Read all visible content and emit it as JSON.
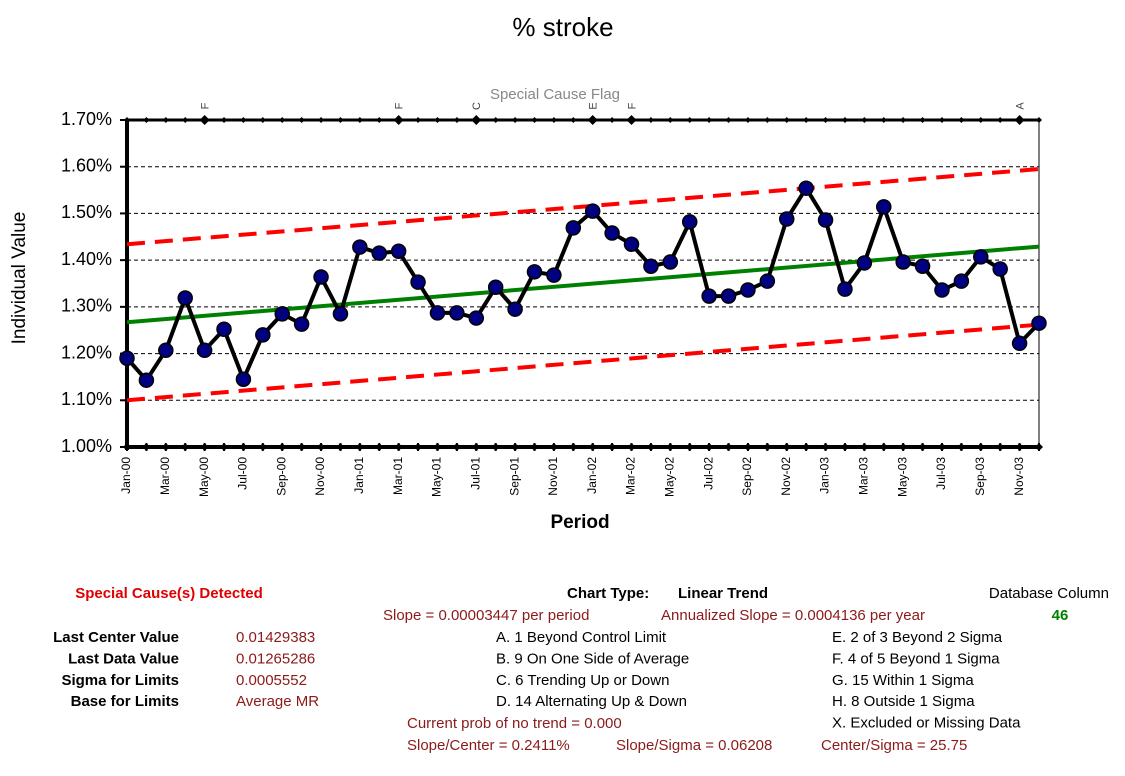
{
  "chart_data": {
    "type": "line",
    "title": "% stroke",
    "y_label": "Individual Value",
    "x_label": "Period",
    "flag_title": "Special Cause Flag",
    "categories": [
      "Jan-00",
      null,
      "Mar-00",
      null,
      "May-00",
      null,
      "Jul-00",
      null,
      "Sep-00",
      null,
      "Nov-00",
      null,
      "Jan-01",
      null,
      "Mar-01",
      null,
      "May-01",
      null,
      "Jul-01",
      null,
      "Sep-01",
      null,
      "Nov-01",
      null,
      "Jan-02",
      null,
      "Mar-02",
      null,
      "May-02",
      null,
      "Jul-02",
      null,
      "Sep-02",
      null,
      "Nov-02",
      null,
      "Jan-03",
      null,
      "Mar-03",
      null,
      "May-03",
      null,
      "Jul-03",
      null,
      "Sep-03",
      null,
      "Nov-03",
      null
    ],
    "flags": [
      null,
      null,
      null,
      null,
      "F",
      null,
      null,
      null,
      null,
      null,
      null,
      null,
      null,
      null,
      "F",
      null,
      null,
      null,
      "C",
      null,
      null,
      null,
      null,
      null,
      "E",
      null,
      "F",
      null,
      null,
      null,
      null,
      null,
      null,
      null,
      null,
      null,
      null,
      null,
      null,
      null,
      null,
      null,
      null,
      null,
      null,
      null,
      "A",
      null
    ],
    "series": [
      {
        "color": "#000000",
        "marker_color": "#000080",
        "values": [
          1.19,
          1.143,
          1.207,
          1.319,
          1.207,
          1.252,
          1.145,
          1.24,
          1.285,
          1.263,
          1.364,
          1.285,
          1.428,
          1.415,
          1.419,
          1.353,
          1.287,
          1.287,
          1.276,
          1.342,
          1.295,
          1.375,
          1.368,
          1.469,
          1.505,
          1.458,
          1.434,
          1.387,
          1.396,
          1.482,
          1.323,
          1.323,
          1.336,
          1.355,
          1.488,
          1.554,
          1.486,
          1.338,
          1.394,
          1.514,
          1.396,
          1.387,
          1.336,
          1.355,
          1.407,
          1.381,
          1.222,
          1.265
        ]
      }
    ],
    "center_line": {
      "color": "#008000",
      "values": [
        1.267,
        1.429
      ]
    },
    "upper_limit": {
      "color": "#ff0000",
      "values": [
        1.434,
        1.595
      ]
    },
    "lower_limit": {
      "color": "#ff0000",
      "values": [
        1.1,
        1.262
      ]
    },
    "ylim": [
      1.0,
      1.7
    ],
    "yticks": [
      {
        "value": 1.0,
        "label": "1.00%"
      },
      {
        "value": 1.1,
        "label": "1.10%"
      },
      {
        "value": 1.2,
        "label": "1.20%"
      },
      {
        "value": 1.3,
        "label": "1.30%"
      },
      {
        "value": 1.4,
        "label": "1.40%"
      },
      {
        "value": 1.5,
        "label": "1.50%"
      },
      {
        "value": 1.6,
        "label": "1.60%"
      },
      {
        "value": 1.7,
        "label": "1.70%"
      }
    ],
    "grid": true
  },
  "panel": {
    "detected": "Special Cause(s) Detected",
    "chart_type_label": "Chart Type:",
    "chart_type": "Linear Trend",
    "database_column_label": "Database Column",
    "database_column": "46",
    "slope": "Slope = 0.00003447 per period",
    "annualized_slope": "Annualized Slope = 0.0004136 per year",
    "summary": [
      {
        "label": "Last Center Value",
        "value": "0.01429383"
      },
      {
        "label": "Last Data Value",
        "value": "0.01265286"
      },
      {
        "label": "Sigma for Limits",
        "value": "0.0005552"
      },
      {
        "label": "Base for Limits",
        "value": "Average MR"
      }
    ],
    "rules_left": [
      "A.  1 Beyond Control Limit",
      "B.  9 On One Side of Average",
      "C.  6 Trending Up or Down",
      "D.  14 Alternating  Up & Down"
    ],
    "rules_right": [
      "E.  2 of 3 Beyond 2 Sigma",
      "F.  4 of 5 Beyond 1 Sigma",
      "G.  15 Within 1 Sigma",
      "H.  8 Outside 1 Sigma",
      "X.  Excluded or Missing Data"
    ],
    "prob": "Current prob of no trend = 0.000",
    "ratios": [
      "Slope/Center = 0.2411%",
      "Slope/Sigma = 0.06208",
      "Center/Sigma = 25.75"
    ]
  }
}
